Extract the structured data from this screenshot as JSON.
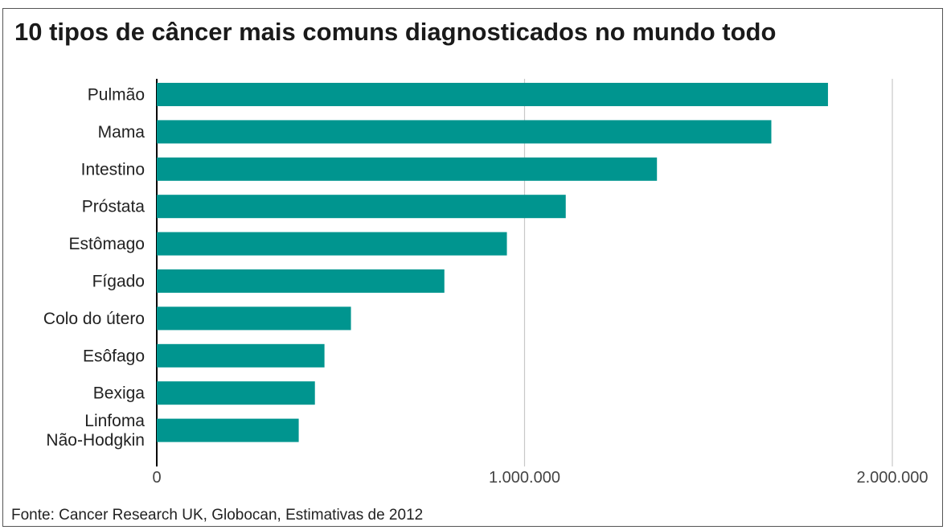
{
  "chart_data": {
    "type": "bar",
    "orientation": "horizontal",
    "title": "10 tipos de câncer mais comuns diagnosticados no mundo todo",
    "categories": [
      "Pulmão",
      "Mama",
      "Intestino",
      "Próstata",
      "Estômago",
      "Fígado",
      "Colo do útero",
      "Esôfago",
      "Bexiga",
      "Linfoma\nNão-Hodgkin"
    ],
    "values": [
      1825000,
      1671000,
      1360000,
      1112000,
      952000,
      782000,
      528000,
      456000,
      430000,
      386000
    ],
    "xlim": [
      0,
      2000000
    ],
    "xticks": [
      0,
      1000000,
      2000000
    ],
    "xtick_labels": [
      "0",
      "1.000.000",
      "2.000.000"
    ],
    "grid": "vertical",
    "bar_color": "#00958f",
    "source": "Fonte: Cancer Research UK, Globocan, Estimativas de 2012"
  }
}
